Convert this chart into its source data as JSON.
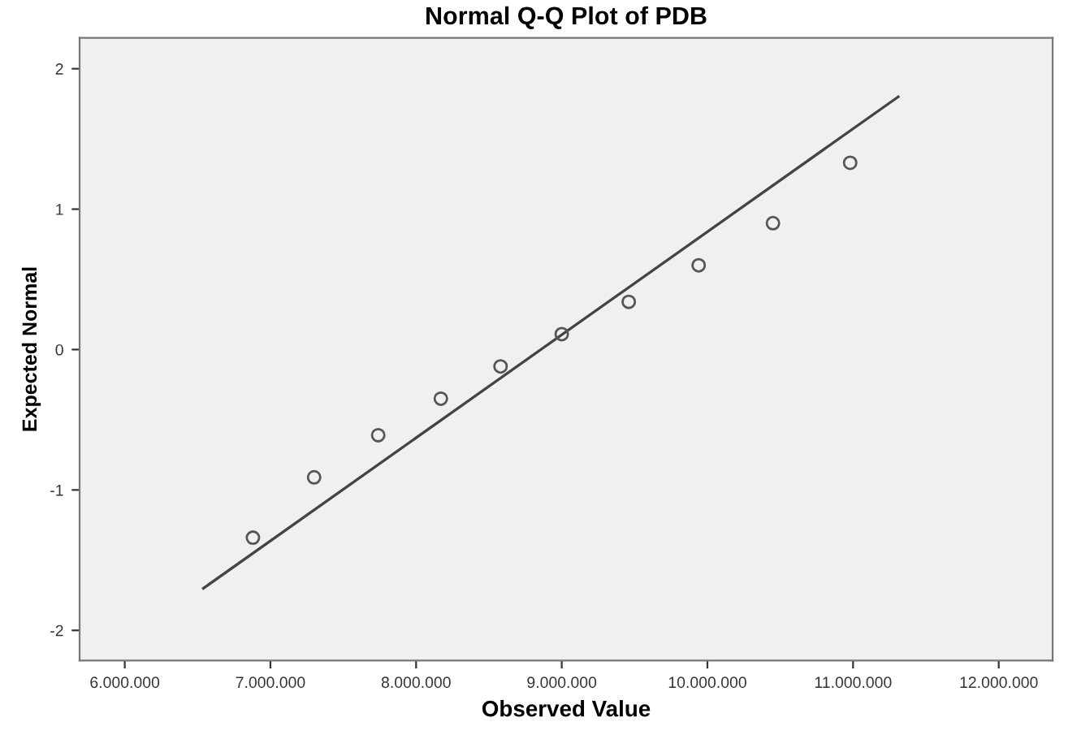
{
  "chart_data": {
    "type": "scatter",
    "title": "Normal Q-Q Plot of PDB",
    "xlabel": "Observed Value",
    "ylabel": "Expected Normal",
    "xlim": [
      5690000,
      12370000
    ],
    "ylim": [
      -2.215,
      2.22
    ],
    "xticks": [
      {
        "value": 6000000,
        "label": "6.000.000"
      },
      {
        "value": 7000000,
        "label": "7.000.000"
      },
      {
        "value": 8000000,
        "label": "8.000.000"
      },
      {
        "value": 9000000,
        "label": "9.000.000"
      },
      {
        "value": 10000000,
        "label": "10.000.000"
      },
      {
        "value": 11000000,
        "label": "11.000.000"
      },
      {
        "value": 12000000,
        "label": "12.000.000"
      }
    ],
    "yticks": [
      -2,
      -1,
      0,
      1,
      2
    ],
    "grid": false,
    "series": [
      {
        "marker": "circle",
        "color": "#555555",
        "x": [
          6880000,
          7300000,
          7740000,
          8170000,
          8580000,
          9000000,
          9460000,
          9940000,
          10450000,
          10980000
        ],
        "values": [
          -1.34,
          -0.91,
          -0.61,
          -0.35,
          -0.12,
          0.11,
          0.34,
          0.6,
          0.9,
          1.33
        ]
      },
      {
        "type": "line",
        "color": "#444444",
        "x": [
          6540000,
          11310000
        ],
        "values": [
          -1.7,
          1.8
        ]
      }
    ]
  }
}
